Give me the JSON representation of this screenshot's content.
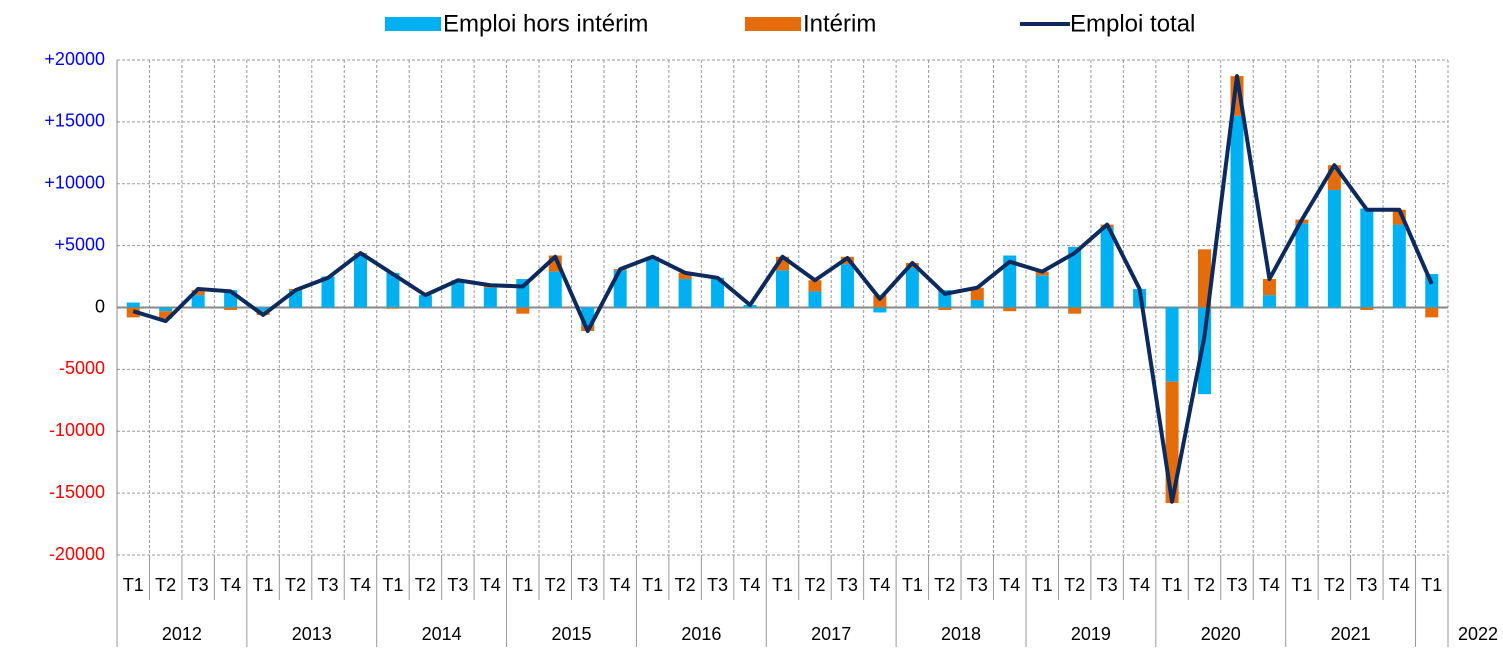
{
  "chart_data": {
    "type": "bar",
    "categories": [
      "T1",
      "T2",
      "T3",
      "T4",
      "T1",
      "T2",
      "T3",
      "T4",
      "T1",
      "T2",
      "T3",
      "T4",
      "T1",
      "T2",
      "T3",
      "T4",
      "T1",
      "T2",
      "T3",
      "T4",
      "T1",
      "T2",
      "T3",
      "T4",
      "T1",
      "T2",
      "T3",
      "T4",
      "T1",
      "T2",
      "T3",
      "T4",
      "T1",
      "T2",
      "T3",
      "T4",
      "T1",
      "T2",
      "T3",
      "T4",
      "T1"
    ],
    "years": [
      "2012",
      "2013",
      "2014",
      "2015",
      "2016",
      "2017",
      "2018",
      "2019",
      "2020",
      "2021",
      "2022"
    ],
    "series": [
      {
        "name": "Emploi hors intérim",
        "color": "#00b0f0",
        "values": [
          400,
          -300,
          1000,
          1400,
          -300,
          1400,
          2500,
          4300,
          2800,
          1000,
          2200,
          1600,
          2300,
          2900,
          -1500,
          3000,
          3900,
          2300,
          2400,
          200,
          3000,
          1300,
          3500,
          -400,
          3200,
          1400,
          600,
          4200,
          2600,
          4900,
          6500,
          1500,
          -6000,
          -7000,
          15500,
          1000,
          6800,
          9500,
          8000,
          6700,
          2700
        ]
      },
      {
        "name": "Intérim",
        "color": "#e46c0a",
        "values": [
          -800,
          -600,
          400,
          -200,
          -300,
          100,
          0,
          100,
          -100,
          0,
          0,
          200,
          -500,
          1300,
          -400,
          100,
          200,
          500,
          0,
          0,
          1100,
          900,
          600,
          1000,
          400,
          -200,
          1000,
          -300,
          300,
          -500,
          200,
          0,
          -9800,
          4700,
          3200,
          1300,
          300,
          2000,
          -200,
          1200,
          -800
        ]
      },
      {
        "name": "Emploi total",
        "type": "line",
        "color": "#0d2a5e",
        "values": [
          -300,
          -1100,
          1500,
          1300,
          -600,
          1400,
          2400,
          4400,
          2700,
          1000,
          2200,
          1800,
          1700,
          4100,
          -1900,
          3100,
          4100,
          2800,
          2400,
          200,
          4100,
          2200,
          4000,
          700,
          3600,
          1100,
          1600,
          3700,
          2900,
          4400,
          6700,
          1500,
          -15700,
          -2300,
          18700,
          2300,
          7100,
          11500,
          7900,
          7900,
          1900
        ]
      }
    ],
    "ylim": [
      -20000,
      20000
    ],
    "yticks": [
      -20000,
      -15000,
      -10000,
      -5000,
      0,
      {
        "value": 5000,
        "label": "+5000"
      },
      {
        "value": 10000,
        "label": "+10000"
      },
      {
        "value": 15000,
        "label": "+15000"
      },
      {
        "value": 20000,
        "label": "+20000"
      }
    ],
    "grid": true,
    "legend": "top"
  }
}
